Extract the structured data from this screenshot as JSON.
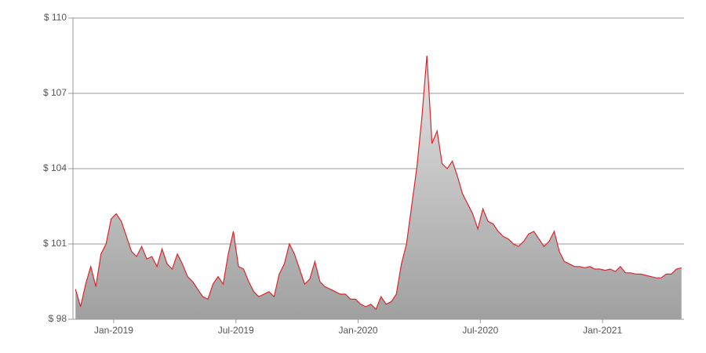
{
  "chart_data": {
    "type": "area",
    "x": [
      "2018-11",
      "2018-11",
      "2018-11",
      "2018-11",
      "2018-12",
      "2018-12",
      "2018-12",
      "2018-12",
      "2019-01",
      "2019-01",
      "2019-01",
      "2019-01",
      "2019-02",
      "2019-02",
      "2019-02",
      "2019-02",
      "2019-03",
      "2019-03",
      "2019-03",
      "2019-03",
      "2019-04",
      "2019-04",
      "2019-04",
      "2019-04",
      "2019-05",
      "2019-05",
      "2019-05",
      "2019-05",
      "2019-06",
      "2019-06",
      "2019-06",
      "2019-06",
      "2019-07",
      "2019-07",
      "2019-07",
      "2019-07",
      "2019-08",
      "2019-08",
      "2019-08",
      "2019-08",
      "2019-09",
      "2019-09",
      "2019-09",
      "2019-09",
      "2019-10",
      "2019-10",
      "2019-10",
      "2019-10",
      "2019-11",
      "2019-11",
      "2019-11",
      "2019-11",
      "2019-12",
      "2019-12",
      "2019-12",
      "2019-12",
      "2020-01",
      "2020-01",
      "2020-01",
      "2020-01",
      "2020-02",
      "2020-02",
      "2020-02",
      "2020-02",
      "2020-03",
      "2020-03",
      "2020-03",
      "2020-03",
      "2020-04",
      "2020-04",
      "2020-04",
      "2020-04",
      "2020-05",
      "2020-05",
      "2020-05",
      "2020-05",
      "2020-06",
      "2020-06",
      "2020-06",
      "2020-06",
      "2020-07",
      "2020-07",
      "2020-07",
      "2020-07",
      "2020-08",
      "2020-08",
      "2020-08",
      "2020-08",
      "2020-09",
      "2020-09",
      "2020-09",
      "2020-09",
      "2020-10",
      "2020-10",
      "2020-10",
      "2020-10",
      "2020-11",
      "2020-11",
      "2020-11",
      "2020-11",
      "2020-12",
      "2020-12",
      "2020-12",
      "2020-12",
      "2021-01",
      "2021-01",
      "2021-01",
      "2021-01",
      "2021-02",
      "2021-02",
      "2021-02",
      "2021-02",
      "2021-03",
      "2021-03",
      "2021-03",
      "2021-03",
      "2021-04",
      "2021-04",
      "2021-04",
      "2021-04"
    ],
    "values": [
      99.2,
      98.5,
      99.4,
      100.1,
      99.3,
      100.6,
      101.0,
      102.0,
      102.2,
      101.9,
      101.3,
      100.7,
      100.5,
      100.9,
      100.4,
      100.5,
      100.1,
      100.8,
      100.2,
      100.0,
      100.6,
      100.2,
      99.7,
      99.5,
      99.2,
      98.9,
      98.8,
      99.4,
      99.7,
      99.4,
      100.6,
      101.5,
      100.1,
      100.0,
      99.5,
      99.1,
      98.9,
      99.0,
      99.1,
      98.9,
      99.8,
      100.2,
      101.0,
      100.6,
      100.0,
      99.4,
      99.6,
      100.3,
      99.5,
      99.3,
      99.2,
      99.1,
      99.0,
      99.0,
      98.8,
      98.8,
      98.6,
      98.5,
      98.6,
      98.4,
      98.9,
      98.6,
      98.7,
      99.0,
      100.2,
      101.0,
      102.5,
      104.0,
      106.0,
      108.5,
      105.0,
      105.5,
      104.2,
      104.0,
      104.3,
      103.7,
      103.0,
      102.6,
      102.2,
      101.6,
      102.4,
      101.9,
      101.8,
      101.5,
      101.3,
      101.2,
      101.0,
      100.9,
      101.1,
      101.4,
      101.5,
      101.2,
      100.9,
      101.1,
      101.5,
      100.7,
      100.3,
      100.2,
      100.1,
      100.1,
      100.05,
      100.1,
      100.0,
      100.0,
      99.95,
      100.0,
      99.9,
      100.1,
      99.85,
      99.85,
      99.8,
      99.8,
      99.75,
      99.7,
      99.65,
      99.65,
      99.8,
      99.8,
      100.0,
      100.05
    ],
    "color": "#d9262c",
    "xlim": [
      "2018-11",
      "2021-05"
    ],
    "xticks": [
      {
        "value": "2019-01",
        "label": "Jan-2019"
      },
      {
        "value": "2019-07",
        "label": "Jul-2019"
      },
      {
        "value": "2020-01",
        "label": "Jan-2020"
      },
      {
        "value": "2020-07",
        "label": "Jul-2020"
      },
      {
        "value": "2021-01",
        "label": "Jan-2021"
      }
    ],
    "ylim": [
      98,
      110
    ],
    "yticks": [
      {
        "value": 98,
        "label": "$ 98"
      },
      {
        "value": 101,
        "label": "$ 101"
      },
      {
        "value": 104,
        "label": "$ 104"
      },
      {
        "value": 107,
        "label": "$ 107"
      },
      {
        "value": 110,
        "label": "$ 110"
      }
    ],
    "grid": true
  }
}
